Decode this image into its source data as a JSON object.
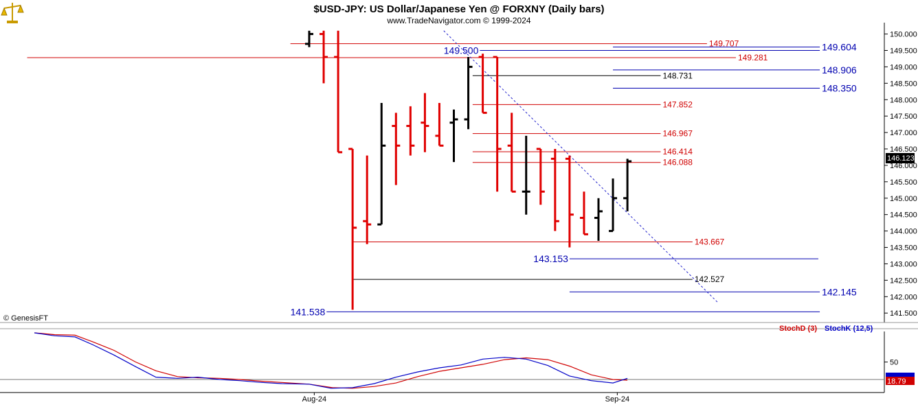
{
  "header": {
    "title": "$USD-JPY:  US Dollar/Japanese Yen @ FORXNY  (Daily bars)",
    "subtitle": "www.TradeNavigator.com © 1999-2024"
  },
  "watermark": "© GenesisFT",
  "logo_icon": "scales-icon",
  "last_price_label": "146.123",
  "colors": {
    "up_bar": "#000000",
    "down_bar": "#e00000",
    "red_line": "#d00000",
    "blue_line": "#0000b0",
    "black_line": "#000000",
    "axis_text": "#000000",
    "stoch_d": "#d00000",
    "stoch_k": "#0000c8"
  },
  "chart_data": [
    {
      "type": "ohlc",
      "title": "$USD-JPY:  US Dollar/Japanese Yen @ FORXNY  (Daily bars)",
      "y_range": [
        141.4,
        150.2
      ],
      "y_ticks": [
        "150.000",
        "149.500",
        "149.000",
        "148.500",
        "148.000",
        "147.500",
        "147.000",
        "146.500",
        "146.000",
        "145.500",
        "145.000",
        "144.500",
        "144.000",
        "143.500",
        "143.000",
        "142.500",
        "142.000",
        "141.500"
      ],
      "x_tick_labels": [
        {
          "label": "Aug-24",
          "bar_index": 0.35
        },
        {
          "label": "Sep-24",
          "bar_index": 21.3
        }
      ],
      "bars": [
        {
          "o": 149.7,
          "h": 150.1,
          "l": 149.6,
          "c": 150.0
        },
        {
          "o": 150.0,
          "h": 150.1,
          "l": 148.5,
          "c": 149.3
        },
        {
          "o": 149.3,
          "h": 150.1,
          "l": 146.4,
          "c": 146.4
        },
        {
          "o": 146.5,
          "h": 146.5,
          "l": 141.6,
          "c": 144.1
        },
        {
          "o": 144.3,
          "h": 146.3,
          "l": 143.6,
          "c": 144.2
        },
        {
          "o": 144.2,
          "h": 147.9,
          "l": 144.2,
          "c": 146.6
        },
        {
          "o": 147.2,
          "h": 147.6,
          "l": 145.4,
          "c": 146.6
        },
        {
          "o": 147.2,
          "h": 147.8,
          "l": 146.3,
          "c": 146.6
        },
        {
          "o": 147.3,
          "h": 148.2,
          "l": 146.4,
          "c": 147.2
        },
        {
          "o": 146.9,
          "h": 147.9,
          "l": 146.6,
          "c": 146.6
        },
        {
          "o": 147.3,
          "h": 147.7,
          "l": 146.1,
          "c": 147.4
        },
        {
          "o": 147.4,
          "h": 149.3,
          "l": 147.1,
          "c": 149.0
        },
        {
          "o": 149.3,
          "h": 149.4,
          "l": 147.6,
          "c": 147.6
        },
        {
          "o": 149.3,
          "h": 149.3,
          "l": 145.2,
          "c": 146.5
        },
        {
          "o": 146.6,
          "h": 147.6,
          "l": 145.2,
          "c": 145.2
        },
        {
          "o": 145.2,
          "h": 146.9,
          "l": 144.5,
          "c": 145.2
        },
        {
          "o": 146.5,
          "h": 146.5,
          "l": 144.8,
          "c": 145.2
        },
        {
          "o": 146.2,
          "h": 146.5,
          "l": 144.0,
          "c": 144.3
        },
        {
          "o": 146.2,
          "h": 146.3,
          "l": 143.5,
          "c": 144.5
        },
        {
          "o": 144.4,
          "h": 145.2,
          "l": 143.9,
          "c": 143.9
        },
        {
          "o": 144.4,
          "h": 145.0,
          "l": 143.7,
          "c": 144.6
        },
        {
          "o": 144.0,
          "h": 145.6,
          "l": 144.0,
          "c": 145.0
        },
        {
          "o": 145.0,
          "h": 146.2,
          "l": 144.6,
          "c": 146.123
        }
      ],
      "levels": [
        {
          "value": 149.707,
          "label": "149.707",
          "color": "red",
          "label_size": "small",
          "from_bar": -1.3,
          "to_bar": 27.5
        },
        {
          "value": 149.604,
          "label": "149.604",
          "color": "blue",
          "label_size": "large",
          "from_bar": 21.0,
          "to_bar": 35.3
        },
        {
          "value": 149.5,
          "label": "149.500",
          "color": "blue",
          "label_size": "large",
          "label_left": true,
          "from_bar": 11.8,
          "to_bar": 35.3
        },
        {
          "value": 149.281,
          "label": "149.281",
          "color": "red",
          "label_size": "small",
          "from_bar": -19.5,
          "to_bar": 29.5
        },
        {
          "value": 148.906,
          "label": "148.906",
          "color": "blue",
          "label_size": "large",
          "from_bar": 21.0,
          "to_bar": 35.3
        },
        {
          "value": 148.731,
          "label": "148.731",
          "color": "black",
          "label_size": "small",
          "from_bar": 11.3,
          "to_bar": 24.3
        },
        {
          "value": 148.35,
          "label": "148.350",
          "color": "blue",
          "label_size": "large",
          "from_bar": 21.0,
          "to_bar": 35.3
        },
        {
          "value": 147.852,
          "label": "147.852",
          "color": "red",
          "label_size": "small",
          "from_bar": 11.3,
          "to_bar": 24.3
        },
        {
          "value": 146.967,
          "label": "146.967",
          "color": "red",
          "label_size": "small",
          "from_bar": 11.3,
          "to_bar": 24.3
        },
        {
          "value": 146.414,
          "label": "146.414",
          "color": "red",
          "label_size": "small",
          "from_bar": 11.3,
          "to_bar": 24.3
        },
        {
          "value": 146.088,
          "label": "146.088",
          "color": "red",
          "label_size": "small",
          "from_bar": 11.3,
          "to_bar": 24.3
        },
        {
          "value": 143.667,
          "label": "143.667",
          "color": "red",
          "label_size": "small",
          "from_bar": 3.0,
          "to_bar": 26.5
        },
        {
          "value": 143.153,
          "label": "143.153",
          "color": "blue",
          "label_size": "large",
          "label_left": true,
          "from_bar": 18.0,
          "to_bar": 35.2
        },
        {
          "value": 142.527,
          "label": "142.527",
          "color": "black",
          "label_size": "small",
          "from_bar": 3.0,
          "to_bar": 26.5
        },
        {
          "value": 142.145,
          "label": "142.145",
          "color": "blue",
          "label_size": "large",
          "from_bar": 18.0,
          "to_bar": 35.3
        },
        {
          "value": 141.538,
          "label": "141.538",
          "color": "blue",
          "label_size": "large",
          "label_left": true,
          "from_bar": 1.2,
          "to_bar": 35.3
        }
      ],
      "trendline": {
        "from": {
          "bar": 9.3,
          "value": 150.1
        },
        "to": {
          "bar": 28.3,
          "value": 141.8
        }
      }
    },
    {
      "type": "line",
      "title": "",
      "y_range": [
        0,
        100
      ],
      "y_ticks": [
        "50"
      ],
      "ref_line": 20,
      "series": [
        {
          "name": "StochD (3)",
          "color": "#d00000",
          "last_label": "18.79",
          "points": [
            [
              -19,
              100
            ],
            [
              -17.6,
              97
            ],
            [
              -16.2,
              96
            ],
            [
              -15,
              85
            ],
            [
              -13.5,
              70
            ],
            [
              -12,
              50
            ],
            [
              -10.6,
              35
            ],
            [
              -9.1,
              25
            ],
            [
              -7.7,
              23
            ],
            [
              -6.2,
              22
            ],
            [
              -4.8,
              20
            ],
            [
              -3.3,
              17
            ],
            [
              -1.9,
              15
            ],
            [
              0,
              12
            ],
            [
              1.6,
              6
            ],
            [
              3,
              5
            ],
            [
              4.5,
              8
            ],
            [
              6,
              14
            ],
            [
              7.5,
              25
            ],
            [
              9,
              34
            ],
            [
              10.5,
              40
            ],
            [
              12,
              46
            ],
            [
              13.5,
              54
            ],
            [
              15,
              57
            ],
            [
              16.5,
              54
            ],
            [
              18,
              43
            ],
            [
              19.5,
              28
            ],
            [
              21,
              20
            ],
            [
              22,
              18.79
            ]
          ]
        },
        {
          "name": "StochK (12,5)",
          "color": "#0000c8",
          "last_label": "",
          "points": [
            [
              -19,
              100
            ],
            [
              -17.6,
              95
            ],
            [
              -16.2,
              93
            ],
            [
              -15,
              80
            ],
            [
              -13.5,
              62
            ],
            [
              -12,
              42
            ],
            [
              -10.6,
              24
            ],
            [
              -9.1,
              22
            ],
            [
              -7.7,
              24
            ],
            [
              -6.2,
              20
            ],
            [
              -4.8,
              18
            ],
            [
              -3.3,
              15
            ],
            [
              -1.9,
              13
            ],
            [
              0,
              12
            ],
            [
              1.5,
              5
            ],
            [
              3,
              6
            ],
            [
              4.5,
              13
            ],
            [
              6,
              24
            ],
            [
              7.5,
              33
            ],
            [
              9,
              40
            ],
            [
              10.5,
              45
            ],
            [
              12,
              55
            ],
            [
              13.5,
              58
            ],
            [
              15,
              55
            ],
            [
              16.5,
              44
            ],
            [
              18,
              26
            ],
            [
              19.5,
              18
            ],
            [
              21,
              14
            ],
            [
              22,
              22
            ]
          ]
        }
      ],
      "legend": [
        {
          "label": "StochD (3)",
          "color": "#d00000"
        },
        {
          "label": "StochK (12,5)",
          "color": "#0000c8"
        }
      ]
    }
  ]
}
